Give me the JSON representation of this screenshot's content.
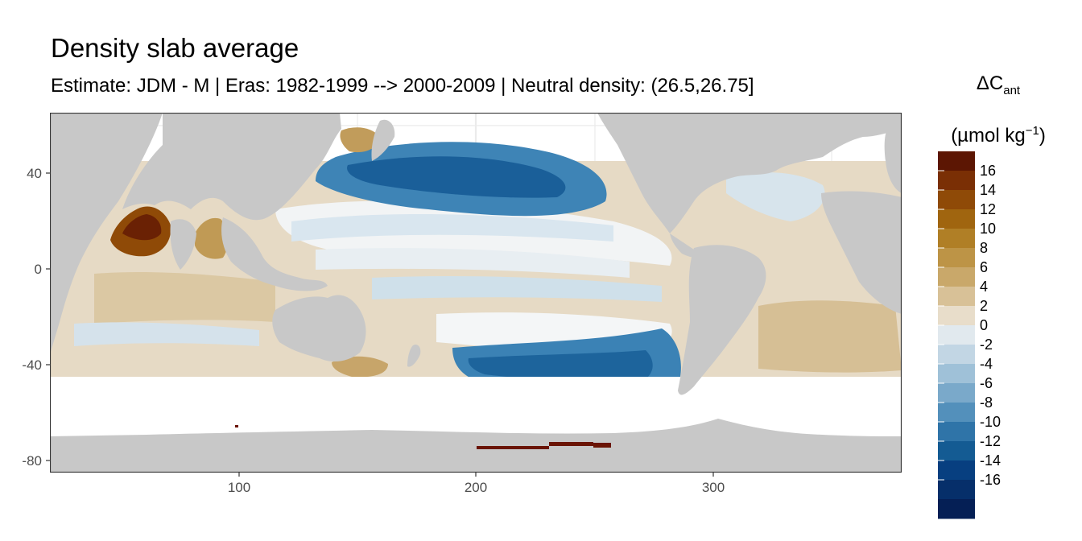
{
  "title": "Density slab average",
  "subtitle": "Estimate: JDM - M | Eras: 1982-1999 --> 2000-2009 | Neutral density: (26.5,26.75]",
  "legend": {
    "title_main": "ΔC",
    "title_sub": "ant",
    "unit_open": "(µmol kg",
    "unit_sup": "−1",
    "unit_close": ")",
    "labels": [
      "16",
      "14",
      "12",
      "10",
      "8",
      "6",
      "4",
      "2",
      "0",
      "-2",
      "-4",
      "-6",
      "-8",
      "-10",
      "-12",
      "-14",
      "-16"
    ],
    "colors": [
      "#5c1603",
      "#7a2f05",
      "#8f4a07",
      "#a0650f",
      "#b07f26",
      "#bd9446",
      "#c9a86a",
      "#d8c197",
      "#e8ddca",
      "#e1e9ee",
      "#c2d6e4",
      "#9fc1d8",
      "#7aa9ca",
      "#5390bb",
      "#2f74a8",
      "#145b93",
      "#073f80",
      "#062f6a",
      "#051f55"
    ]
  },
  "map_data": {
    "xlim": [
      20,
      380
    ],
    "ylim": [
      -86,
      65
    ],
    "x_ticks": [
      100,
      200,
      300
    ],
    "y_ticks": [
      40,
      0,
      -40,
      -80
    ],
    "x_tick_labels": [
      "100",
      "200",
      "300"
    ],
    "y_tick_labels": [
      "40",
      "0",
      "-40",
      "-80"
    ],
    "land_color": "#c8c8c8",
    "grid_color": "#ebebeb",
    "field_color_range": {
      "min": -16,
      "max": 16
    }
  }
}
